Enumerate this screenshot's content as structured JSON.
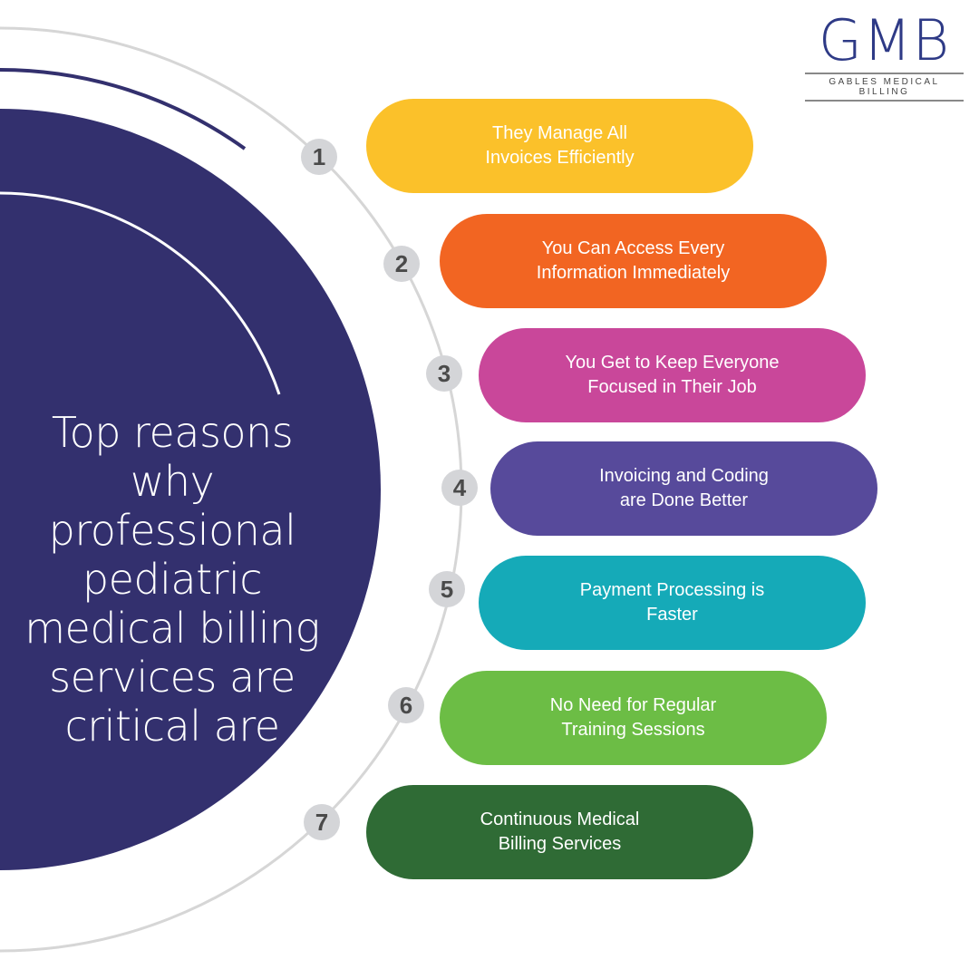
{
  "title": "Top reasons why professional pediatric medical billing services are critical are",
  "logo": {
    "mark": "GMB",
    "subtitle": "GABLES MEDICAL BILLING",
    "color": "#2e3a86"
  },
  "colors": {
    "navy": "#33306e",
    "arc": "#d6d6d6"
  },
  "items": [
    {
      "number": "1",
      "label": "They Manage All\nInvoices Efficiently",
      "color": "#fbc12a"
    },
    {
      "number": "2",
      "label": "You Can Access Every\nInformation Immediately",
      "color": "#f26522"
    },
    {
      "number": "3",
      "label": "You Get to Keep Everyone\nFocused in Their Job",
      "color": "#c9479a"
    },
    {
      "number": "4",
      "label": "Invoicing and Coding\nare Done Better",
      "color": "#574a9b"
    },
    {
      "number": "5",
      "label": "Payment Processing is\nFaster",
      "color": "#15aab8"
    },
    {
      "number": "6",
      "label": "No Need for Regular\nTraining Sessions",
      "color": "#6cbd45"
    },
    {
      "number": "7",
      "label": "Continuous Medical\nBilling Services",
      "color": "#2f6b35"
    }
  ]
}
